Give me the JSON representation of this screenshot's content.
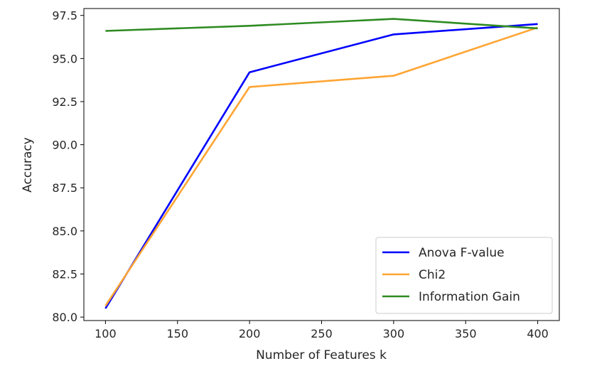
{
  "chart_data": {
    "type": "line",
    "xlabel": "Number of Features k",
    "ylabel": "Accuracy",
    "x": [
      100,
      200,
      300,
      400
    ],
    "xlim": [
      85,
      415
    ],
    "ylim": [
      79.8,
      97.9
    ],
    "xticks": [
      100,
      150,
      200,
      250,
      300,
      350,
      400
    ],
    "xtick_labels": [
      "100",
      "150",
      "200",
      "250",
      "300",
      "350",
      "400"
    ],
    "yticks": [
      80.0,
      82.5,
      85.0,
      87.5,
      90.0,
      92.5,
      95.0,
      97.5
    ],
    "ytick_labels": [
      "80.0",
      "82.5",
      "85.0",
      "87.5",
      "90.0",
      "92.5",
      "95.0",
      "97.5"
    ],
    "grid": false,
    "legend_position": "lower-right",
    "series": [
      {
        "name": "Anova F-value",
        "color": "#0000ff",
        "values": [
          80.5,
          94.2,
          96.4,
          97.0
        ]
      },
      {
        "name": "Chi2",
        "color": "#ffa533",
        "values": [
          80.65,
          93.35,
          94.0,
          96.8
        ]
      },
      {
        "name": "Information Gain",
        "color": "#2e8b22",
        "values": [
          96.6,
          96.9,
          97.3,
          96.75
        ]
      }
    ]
  }
}
